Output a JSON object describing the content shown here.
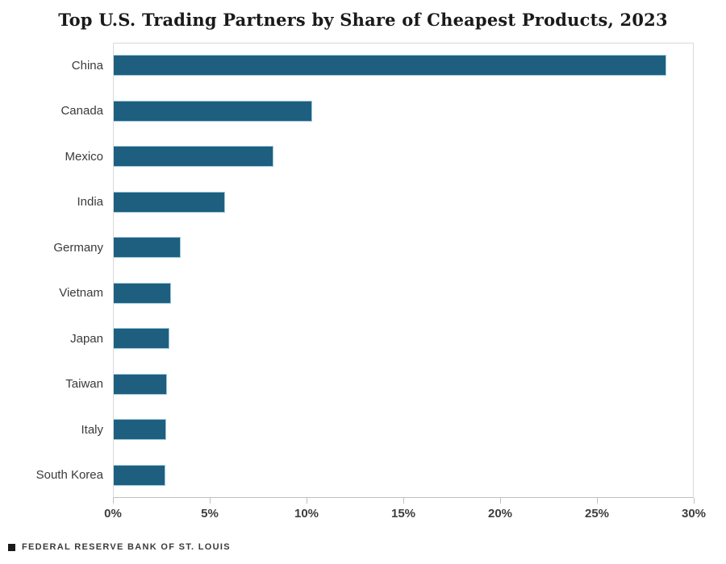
{
  "title": "Top U.S. Trading Partners by Share of Cheapest Products, 2023",
  "source": {
    "icon": "filled-square-icon",
    "label": "FEDERAL RESERVE BANK OF ST. LOUIS"
  },
  "colors": {
    "bar": "#1E5F80",
    "bar_edge": "#9CC8DA",
    "axis_line": "#BFBFBF",
    "frame_line": "#D9D9D9",
    "title_text": "#1A1A1A",
    "label_text": "#3A3A3A"
  },
  "chart_data": {
    "type": "bar",
    "orientation": "horizontal",
    "title": "Top U.S. Trading Partners by Share of Cheapest Products, 2023",
    "categories": [
      "China",
      "Canada",
      "Mexico",
      "India",
      "Germany",
      "Vietnam",
      "Japan",
      "Taiwan",
      "Italy",
      "South Korea"
    ],
    "values": [
      28.6,
      10.3,
      8.3,
      5.8,
      3.5,
      3.0,
      2.9,
      2.8,
      2.75,
      2.7
    ],
    "unit": "%",
    "xlabel": "",
    "ylabel": "",
    "xlim": [
      0,
      30
    ],
    "x_ticks": [
      "0%",
      "5%",
      "10%",
      "15%",
      "20%",
      "25%",
      "30%"
    ],
    "x_tick_values": [
      0,
      5,
      10,
      15,
      20,
      25,
      30
    ],
    "grid": false,
    "legend_position": "none"
  }
}
